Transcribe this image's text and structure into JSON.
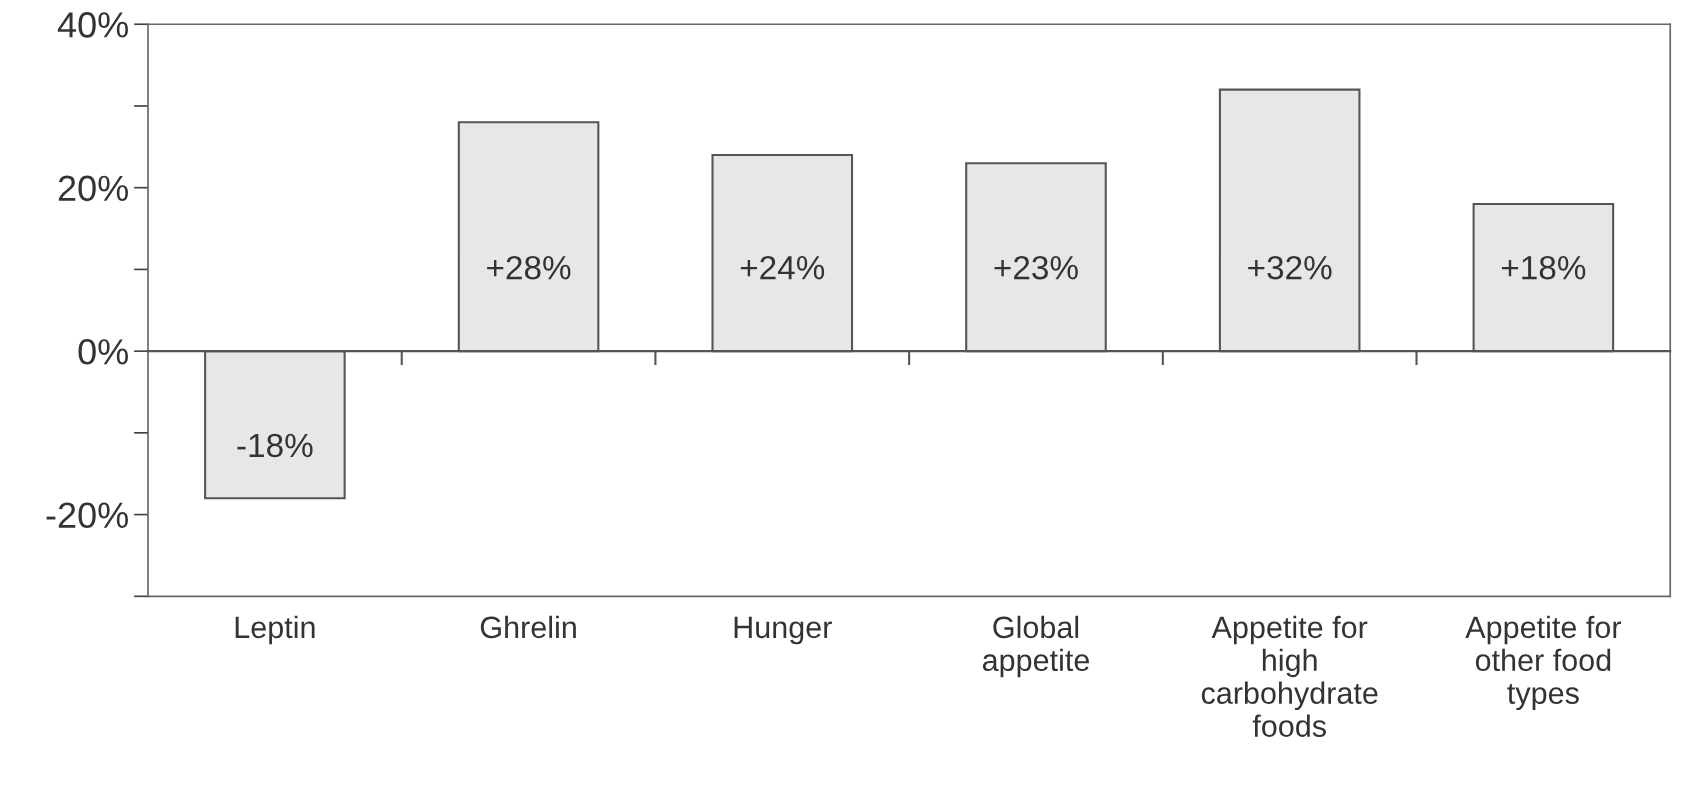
{
  "chart_data": {
    "type": "bar",
    "categories": [
      "Leptin",
      "Ghrelin",
      "Hunger",
      "Global\nappetite",
      "Appetite for\nhigh\ncarbohydrate\nfoods",
      "Appetite for\nother food\ntypes"
    ],
    "values": [
      -18,
      28,
      24,
      23,
      32,
      18
    ],
    "value_labels": [
      "-18%",
      "+28%",
      "+24%",
      "+23%",
      "+32%",
      "+18%"
    ],
    "color": "#e6e7e8",
    "ylim": [
      -30,
      40
    ],
    "yticks": [
      {
        "value": -30,
        "label": null
      },
      {
        "value": -20,
        "label": "-20%"
      },
      {
        "value": -10,
        "label": null
      },
      {
        "value": 0,
        "label": "0%"
      },
      {
        "value": 10,
        "label": null
      },
      {
        "value": 20,
        "label": "20%"
      },
      {
        "value": 30,
        "label": null
      },
      {
        "value": 40,
        "label": "40%"
      }
    ],
    "legend": false
  }
}
